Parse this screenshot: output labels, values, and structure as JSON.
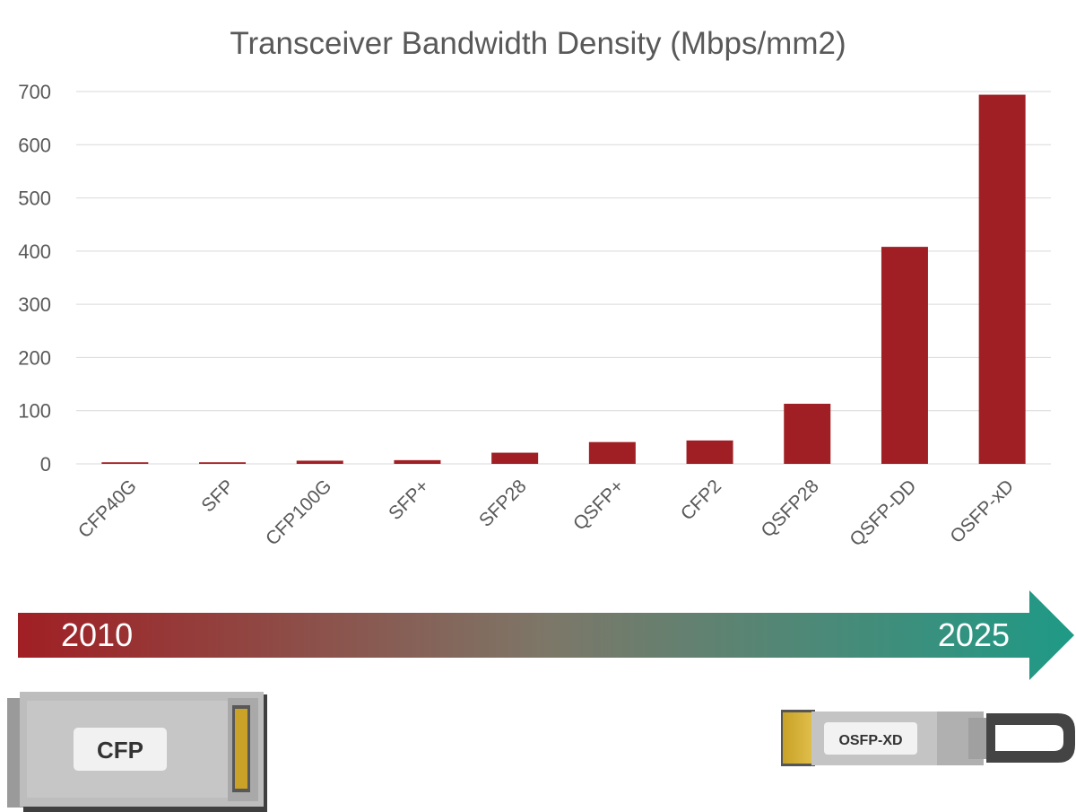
{
  "chart_data": {
    "type": "bar",
    "title": "Transceiver Bandwidth Density (Mbps/mm2)",
    "xlabel": "",
    "ylabel": "",
    "categories": [
      "CFP40G",
      "SFP",
      "CFP100G",
      "SFP+",
      "SFP28",
      "QSFP+",
      "CFP2",
      "QSFP28",
      "QSFP-DD",
      "OSFP-xD"
    ],
    "values": [
      3,
      3,
      6,
      7,
      21,
      41,
      44,
      113,
      408,
      694
    ],
    "ylim": [
      0,
      700
    ],
    "yticks": [
      0,
      100,
      200,
      300,
      400,
      500,
      600,
      700
    ],
    "grid": true,
    "bar_color": "#a01f24"
  },
  "timeline": {
    "start_label": "2010",
    "end_label": "2025",
    "start_color": "#a01f24",
    "end_color": "#1e9a86"
  },
  "modules": {
    "left_label": "CFP",
    "right_label": "OSFP-XD"
  }
}
